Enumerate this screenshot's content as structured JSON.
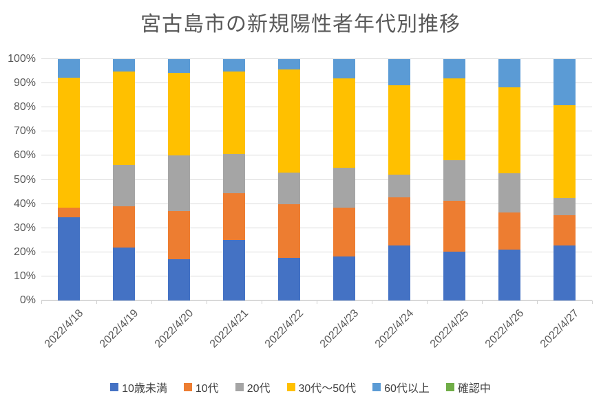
{
  "chart_data": {
    "type": "bar",
    "stacked": true,
    "percent_stacked": true,
    "title": "宮古島市の新規陽性者年代別推移",
    "categories": [
      "2022/4/18",
      "2022/4/19",
      "2022/4/20",
      "2022/4/21",
      "2022/4/22",
      "2022/4/23",
      "2022/4/24",
      "2022/4/25",
      "2022/4/26",
      "2022/4/27"
    ],
    "series": [
      {
        "name": "10歳未満",
        "color": "#4472C4",
        "values": [
          34.6,
          22.0,
          17.1,
          25.2,
          17.6,
          18.2,
          22.7,
          20.3,
          21.1,
          22.9
        ]
      },
      {
        "name": "10代",
        "color": "#ED7D31",
        "values": [
          3.9,
          17.0,
          20.0,
          19.2,
          22.4,
          20.4,
          20.0,
          21.1,
          15.3,
          12.3
        ]
      },
      {
        "name": "20代",
        "color": "#A5A5A5",
        "values": [
          0.0,
          17.0,
          22.9,
          16.2,
          12.9,
          16.4,
          9.5,
          16.7,
          16.2,
          7.2
        ]
      },
      {
        "name": "30代～50代",
        "color": "#FFC000",
        "values": [
          53.8,
          39.0,
          34.3,
          34.4,
          42.8,
          37.0,
          37.1,
          33.8,
          35.8,
          38.6
        ]
      },
      {
        "name": "60代以上",
        "color": "#5B9BD5",
        "values": [
          7.7,
          5.0,
          5.7,
          5.0,
          4.3,
          8.0,
          10.7,
          8.1,
          11.6,
          19.0
        ]
      },
      {
        "name": "確認中",
        "color": "#70AD47",
        "values": [
          0,
          0,
          0,
          0,
          0,
          0,
          0,
          0,
          0,
          0
        ]
      }
    ],
    "y_ticks": [
      "0%",
      "10%",
      "20%",
      "30%",
      "40%",
      "50%",
      "60%",
      "70%",
      "80%",
      "90%",
      "100%"
    ],
    "ylim": [
      0,
      100
    ],
    "y_tick_step": 10,
    "grid": true,
    "legend_position": "bottom",
    "xlabel": "",
    "ylabel": ""
  },
  "colors": {
    "title_text": "#595959",
    "axis_text": "#595959",
    "legend_text": "#404040",
    "gridline": "#D9D9D9",
    "background": "#FFFFFF"
  }
}
